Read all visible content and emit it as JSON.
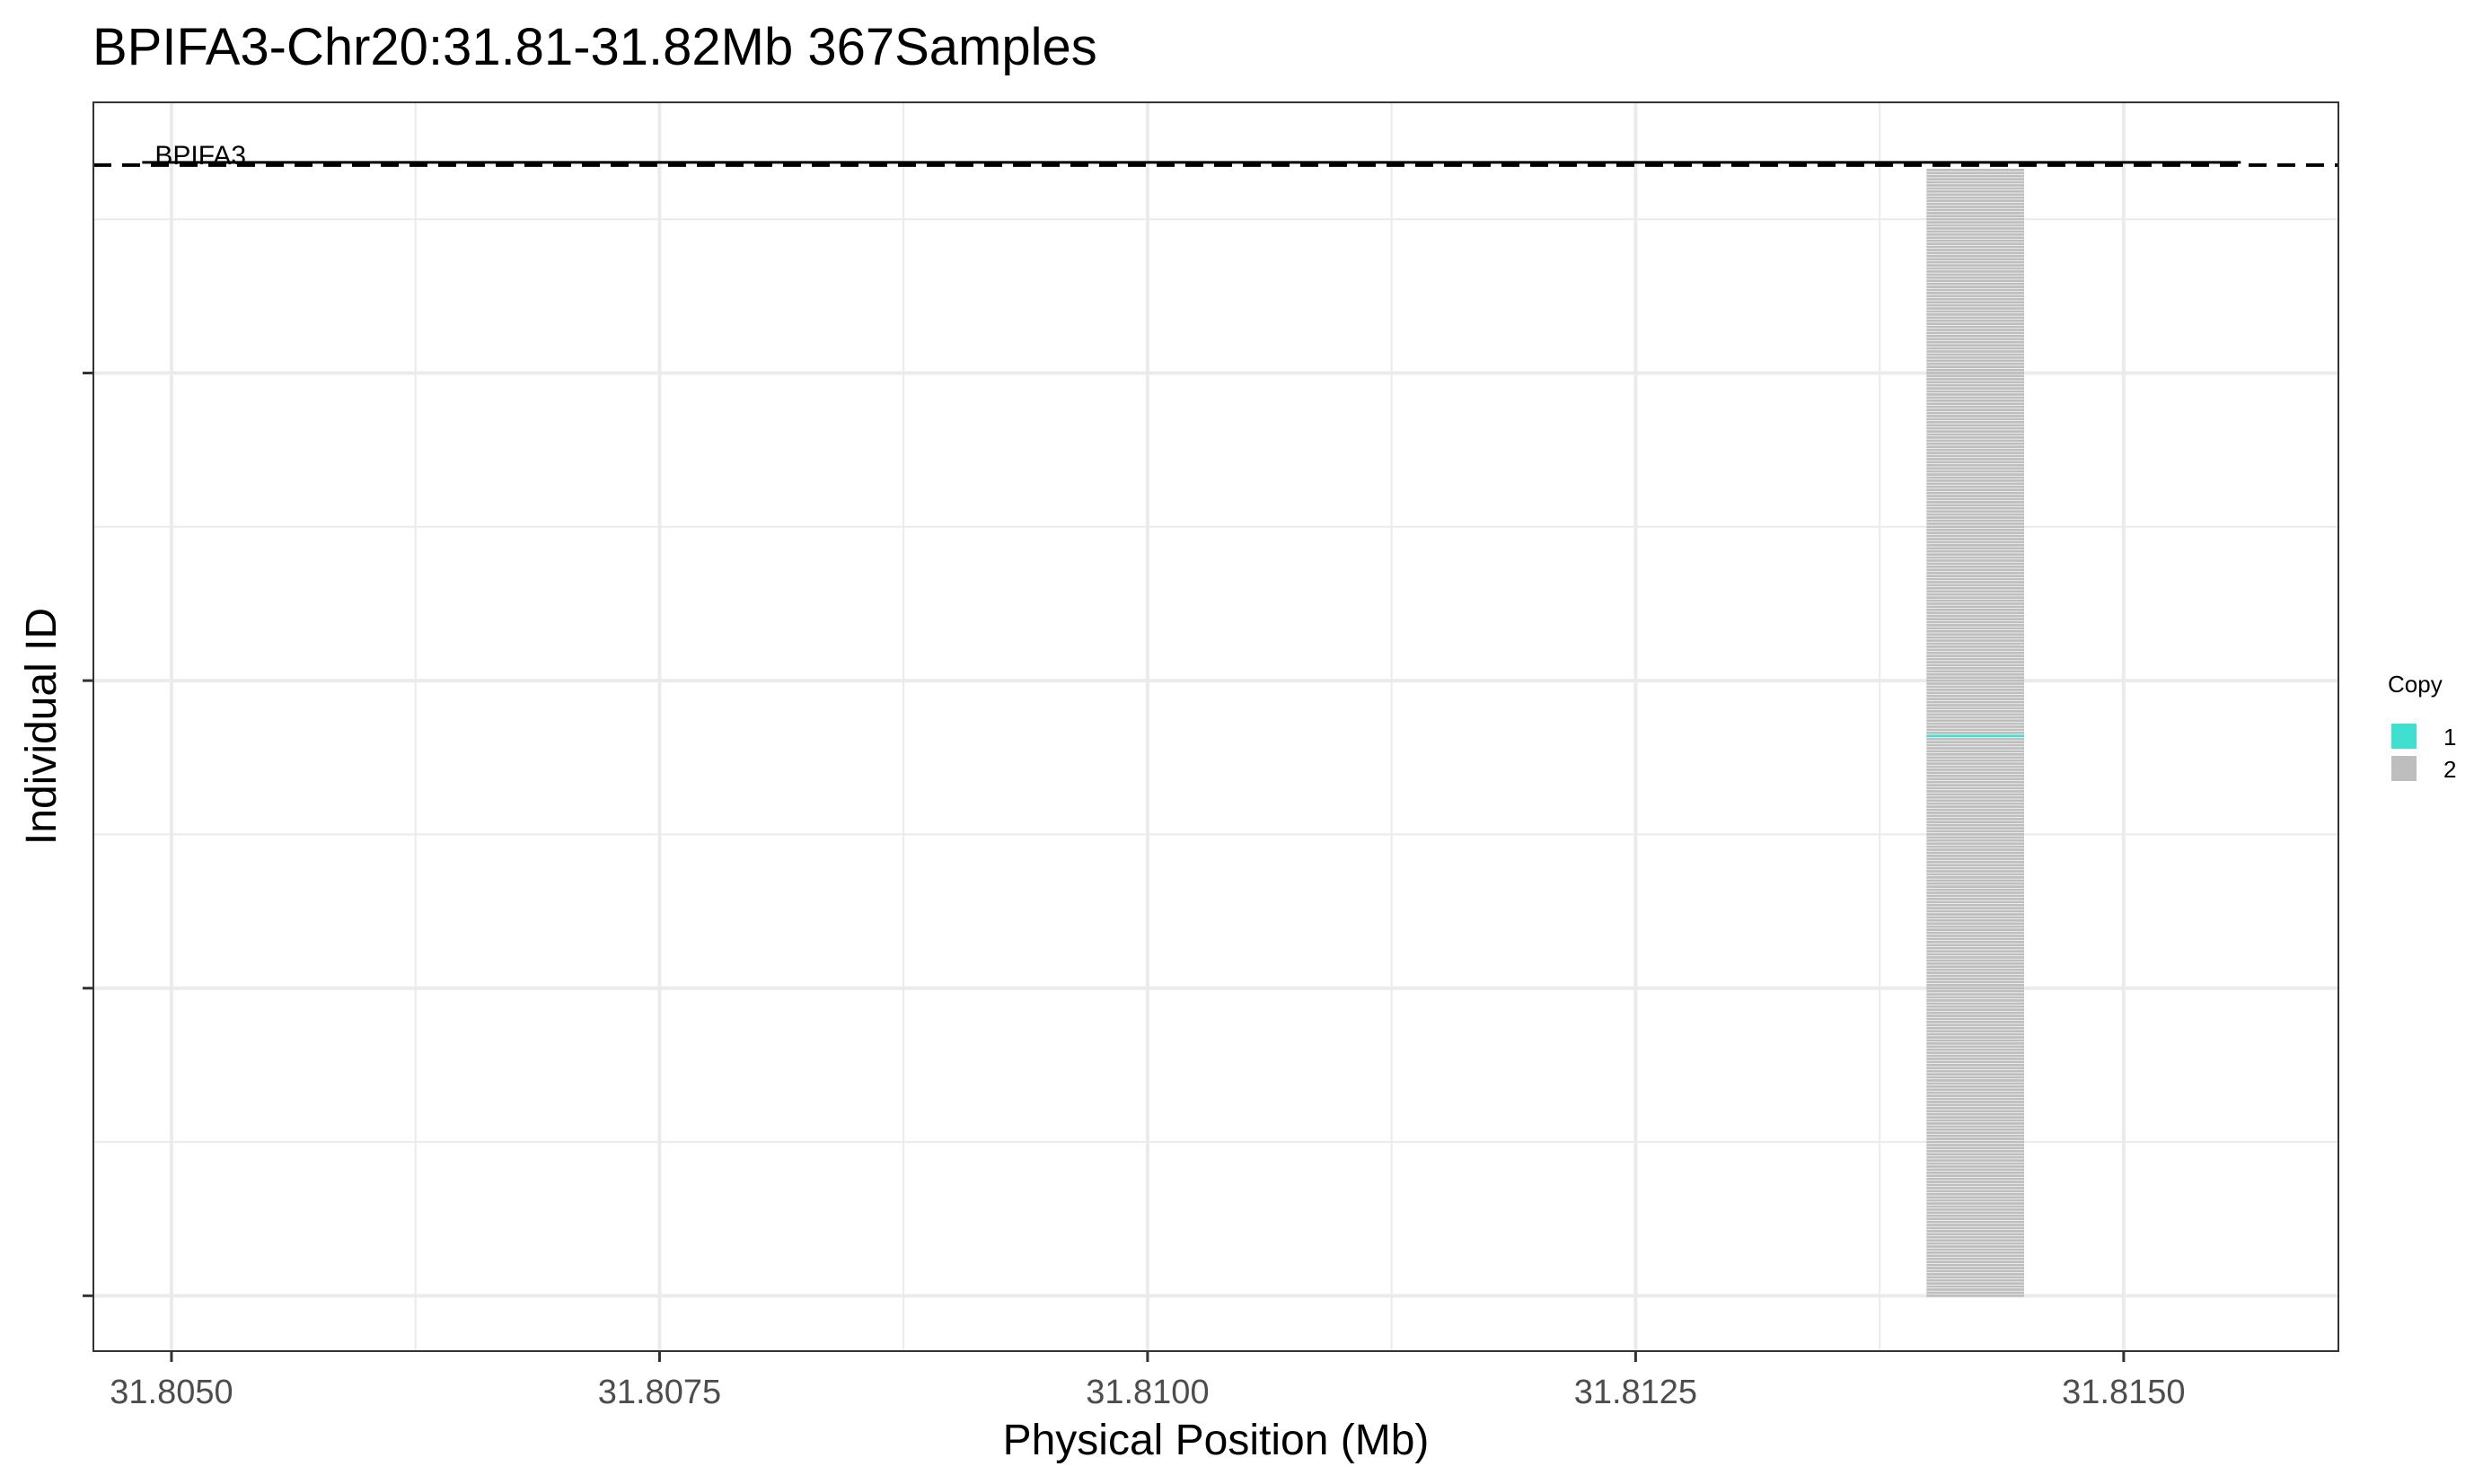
{
  "chart_data": {
    "type": "heatmap",
    "title": "BPIFA3-Chr20:31.81-31.82Mb 367Samples",
    "xlabel": "Physical Position (Mb)",
    "ylabel": "Individual ID",
    "xlim": [
      31.8046,
      31.8161
    ],
    "x_ticks": [
      {
        "value": 31.805,
        "label": "31.8050"
      },
      {
        "value": 31.8075,
        "label": "31.8075"
      },
      {
        "value": 31.81,
        "label": "31.8100"
      },
      {
        "value": 31.8125,
        "label": "31.8125"
      },
      {
        "value": 31.815,
        "label": "31.8150"
      }
    ],
    "ylim": [
      -18,
      388
    ],
    "y_ticks": [
      0,
      100,
      200,
      300
    ],
    "grid": true,
    "gene": {
      "name": "BPIFA3",
      "start": 31.80485,
      "end": 31.8156
    },
    "reference_line": {
      "style": "dashed"
    },
    "segment": {
      "x_start": 31.81399,
      "x_end": 31.81449,
      "samples": 367
    },
    "copy_one_sample": 182,
    "legend": {
      "title": "Copy",
      "position": "right",
      "items": [
        {
          "label": "1",
          "color": "#40E0D0"
        },
        {
          "label": "2",
          "color": "#BEBEBE"
        }
      ]
    }
  }
}
